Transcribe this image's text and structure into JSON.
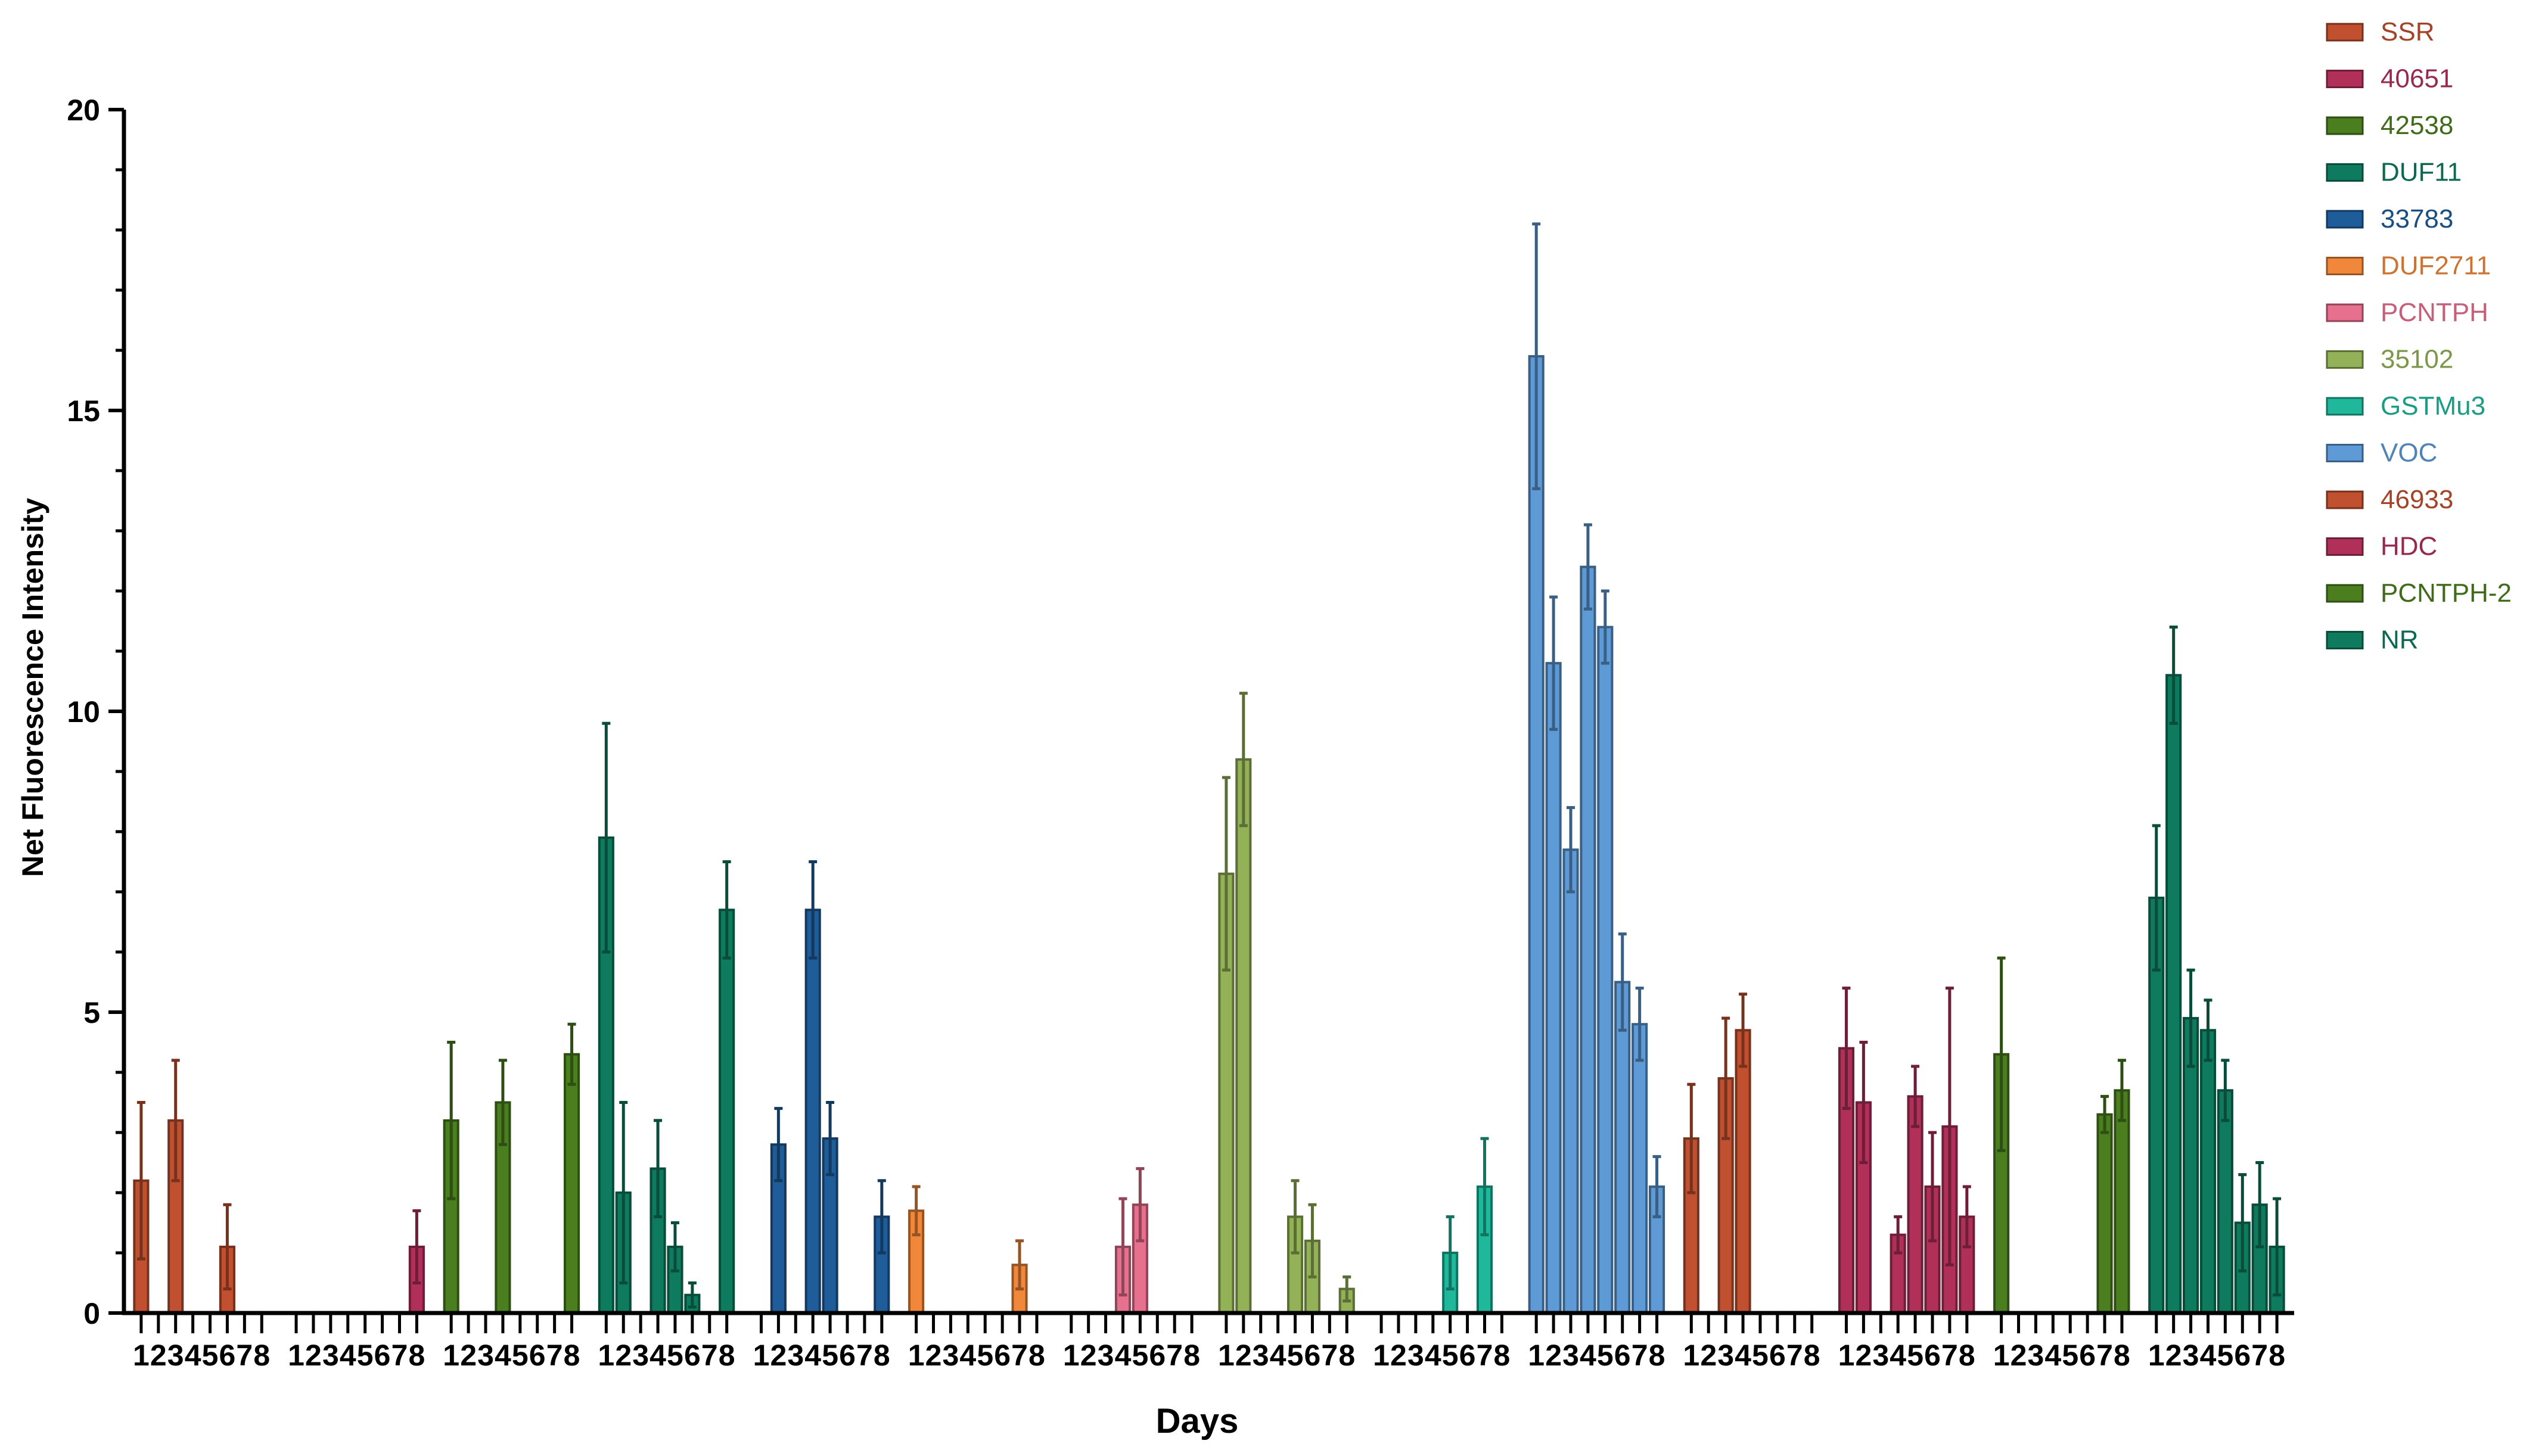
{
  "chart_data": {
    "type": "bar",
    "title": "",
    "xlabel": "Days",
    "ylabel": "Net Fluorescence Intensity",
    "ylim": [
      0,
      20
    ],
    "yticks": [
      0,
      5,
      10,
      15,
      20
    ],
    "grid": false,
    "legend_position": "right",
    "days": [
      "1",
      "2",
      "3",
      "4",
      "5",
      "6",
      "7",
      "8"
    ],
    "series": [
      {
        "name": "SSR",
        "color": "#C0502F",
        "values": [
          2.2,
          0,
          3.2,
          0,
          0,
          1.1,
          0,
          0
        ],
        "errors": [
          1.3,
          0,
          1.0,
          0,
          0,
          0.7,
          0,
          0
        ]
      },
      {
        "name": "40651",
        "color": "#B0305A",
        "values": [
          0,
          0,
          0,
          0,
          0,
          0,
          0,
          1.1
        ],
        "errors": [
          0,
          0,
          0,
          0,
          0,
          0,
          0,
          0.6
        ]
      },
      {
        "name": "42538",
        "color": "#4A7E1E",
        "values": [
          3.2,
          0,
          0,
          3.5,
          0,
          0,
          0,
          4.3
        ],
        "errors": [
          1.3,
          0,
          0,
          0.7,
          0,
          0,
          0,
          0.5
        ]
      },
      {
        "name": "DUF11",
        "color": "#0E7A5E",
        "values": [
          7.9,
          2.0,
          0,
          2.4,
          1.1,
          0.3,
          0,
          6.7
        ],
        "errors": [
          1.9,
          1.5,
          0,
          0.8,
          0.4,
          0.2,
          0,
          0.8
        ]
      },
      {
        "name": "33783",
        "color": "#1F5C9A",
        "values": [
          0,
          2.8,
          0,
          6.7,
          2.9,
          0,
          0,
          1.6
        ],
        "errors": [
          0,
          0.6,
          0,
          0.8,
          0.6,
          0,
          0,
          0.6
        ]
      },
      {
        "name": "DUF2711",
        "color": "#F0873A",
        "values": [
          1.7,
          0,
          0,
          0,
          0,
          0,
          0.8,
          0
        ],
        "errors": [
          0.4,
          0,
          0,
          0,
          0,
          0,
          0.4,
          0
        ]
      },
      {
        "name": "PCNTPH",
        "color": "#E8708F",
        "values": [
          0,
          0,
          0,
          1.1,
          1.8,
          0,
          0,
          0
        ],
        "errors": [
          0,
          0,
          0,
          0.8,
          0.6,
          0,
          0,
          0
        ]
      },
      {
        "name": "35102",
        "color": "#93B257",
        "values": [
          7.3,
          9.2,
          0,
          0,
          1.6,
          1.2,
          0,
          0.4
        ],
        "errors": [
          1.6,
          1.1,
          0,
          0,
          0.6,
          0.6,
          0,
          0.2
        ]
      },
      {
        "name": "GSTMu3",
        "color": "#20B89B",
        "values": [
          0,
          0,
          0,
          0,
          1.0,
          0,
          2.1,
          0
        ],
        "errors": [
          0,
          0,
          0,
          0,
          0.6,
          0,
          0.8,
          0
        ]
      },
      {
        "name": "VOC",
        "color": "#5E9AD6",
        "values": [
          15.9,
          10.8,
          7.7,
          12.4,
          11.4,
          5.5,
          4.8,
          2.1
        ],
        "errors": [
          2.2,
          1.1,
          0.7,
          0.7,
          0.6,
          0.8,
          0.6,
          0.5
        ]
      },
      {
        "name": "46933",
        "color": "#C0502F",
        "values": [
          2.9,
          0,
          3.9,
          4.7,
          0,
          0,
          0,
          0
        ],
        "errors": [
          0.9,
          0,
          1.0,
          0.6,
          0,
          0,
          0,
          0
        ]
      },
      {
        "name": "HDC",
        "color": "#B0305A",
        "values": [
          4.4,
          3.5,
          0,
          1.3,
          3.6,
          2.1,
          3.1,
          1.6
        ],
        "errors": [
          1.0,
          1.0,
          0,
          0.3,
          0.5,
          0.9,
          2.3,
          0.5
        ]
      },
      {
        "name": "PCNTPH-2",
        "color": "#4A7E1E",
        "values": [
          4.3,
          0,
          0,
          0,
          0,
          0,
          3.3,
          3.7
        ],
        "errors": [
          1.6,
          0,
          0,
          0,
          0,
          0,
          0.3,
          0.5
        ]
      },
      {
        "name": "NR",
        "color": "#0E7A5E",
        "values": [
          6.9,
          10.6,
          4.9,
          4.7,
          3.7,
          1.5,
          1.8,
          1.1
        ],
        "errors": [
          1.2,
          0.8,
          0.8,
          0.5,
          0.5,
          0.8,
          0.7,
          0.8
        ]
      }
    ]
  }
}
